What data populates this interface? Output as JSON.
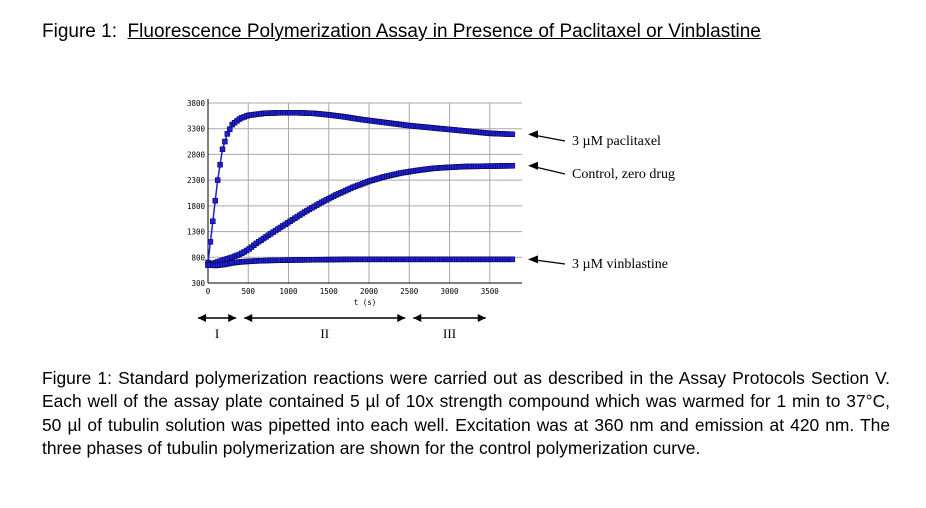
{
  "figure": {
    "label": "Figure 1:",
    "title": "Fluorescence Polymerization Assay in Presence of Paclitaxel  or Vinblastine",
    "caption": "Figure 1:  Standard polymerization reactions were carried out as described in the Assay Protocols Section V.   Each well of the assay plate contained 5 µl of 10x strength compound which was warmed for 1 min to 37°C, 50 µl of tubulin solution was pipetted into each well. Excitation was at 360 nm and emission at 420 nm.  The three phases of tubulin polymerization are shown for the control polymerization curve."
  },
  "chart_data": {
    "type": "scatter",
    "title": "",
    "xlabel": "t (s)",
    "ylabel": "",
    "xlim": [
      0,
      3900
    ],
    "ylim": [
      300,
      3800
    ],
    "x_ticks": [
      0,
      500,
      1000,
      1500,
      2000,
      2500,
      3000,
      3500
    ],
    "x_tick_labels": [
      "0",
      "500",
      "1000",
      "1500",
      "2000",
      "2500",
      "3000",
      "3500"
    ],
    "y_ticks": [
      300,
      800,
      1300,
      1800,
      2300,
      2800,
      3300,
      3800
    ],
    "y_tick_labels": [
      "300",
      "800",
      "1300",
      "1800",
      "2300",
      "2800",
      "3300",
      "3800"
    ],
    "grid": true,
    "marker_color": "#1f1fd6",
    "series": [
      {
        "name": "3 µM paclitaxel",
        "x": [
          0,
          60,
          120,
          180,
          240,
          300,
          400,
          500,
          700,
          900,
          1100,
          1300,
          1500,
          1700,
          1900,
          2100,
          2300,
          2500,
          2700,
          2900,
          3100,
          3300,
          3500,
          3800
        ],
        "y": [
          700,
          1500,
          2300,
          2900,
          3200,
          3380,
          3500,
          3560,
          3600,
          3610,
          3610,
          3600,
          3570,
          3530,
          3480,
          3440,
          3400,
          3360,
          3330,
          3300,
          3270,
          3240,
          3210,
          3190
        ]
      },
      {
        "name": "Control, zero drug",
        "x": [
          0,
          100,
          200,
          300,
          400,
          500,
          600,
          800,
          1000,
          1200,
          1400,
          1600,
          1800,
          2000,
          2200,
          2400,
          2600,
          2800,
          3000,
          3200,
          3400,
          3600,
          3800
        ],
        "y": [
          650,
          700,
          750,
          800,
          860,
          950,
          1070,
          1280,
          1480,
          1680,
          1860,
          2020,
          2160,
          2280,
          2370,
          2440,
          2490,
          2530,
          2550,
          2565,
          2570,
          2575,
          2580
        ]
      },
      {
        "name": "3 µM vinblastine",
        "x": [
          0,
          100,
          200,
          300,
          400,
          600,
          800,
          1000,
          1200,
          1500,
          1800,
          2100,
          2400,
          2700,
          3000,
          3300,
          3600,
          3800
        ],
        "y": [
          650,
          640,
          660,
          690,
          710,
          730,
          740,
          745,
          750,
          755,
          760,
          760,
          760,
          760,
          760,
          760,
          760,
          760
        ]
      }
    ],
    "phases": [
      {
        "label": "I",
        "x_range": [
          0,
          400
        ]
      },
      {
        "label": "II",
        "x_range": [
          400,
          2500
        ]
      },
      {
        "label": "III",
        "x_range": [
          2500,
          3500
        ]
      }
    ]
  }
}
